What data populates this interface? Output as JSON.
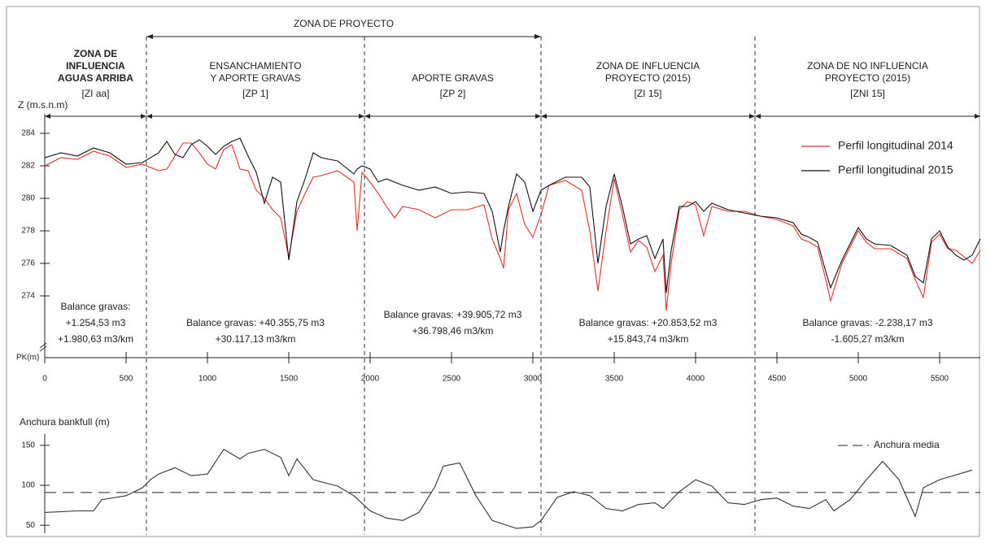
{
  "chart_data": [
    {
      "type": "line",
      "y_label": "Z (m.s.n.m)",
      "x_label": "PK(m)",
      "xlim": [
        0,
        5750
      ],
      "xticks": [
        0,
        500,
        1000,
        1500,
        2000,
        2500,
        3000,
        3500,
        4000,
        4500,
        5000,
        5500
      ],
      "ylim": [
        273,
        285
      ],
      "yticks": [
        274,
        276,
        278,
        280,
        282,
        284
      ],
      "x": [
        0,
        100,
        200,
        300,
        400,
        500,
        600,
        700,
        750,
        800,
        850,
        900,
        950,
        1000,
        1050,
        1100,
        1150,
        1200,
        1250,
        1300,
        1350,
        1400,
        1450,
        1500,
        1550,
        1600,
        1650,
        1700,
        1800,
        1900,
        1920,
        1950,
        2000,
        2050,
        2100,
        2150,
        2200,
        2300,
        2400,
        2500,
        2600,
        2700,
        2750,
        2800,
        2820,
        2850,
        2900,
        2950,
        3000,
        3050,
        3100,
        3200,
        3300,
        3350,
        3400,
        3450,
        3500,
        3550,
        3600,
        3650,
        3700,
        3750,
        3800,
        3820,
        3850,
        3900,
        3950,
        4000,
        4050,
        4100,
        4200,
        4300,
        4400,
        4500,
        4600,
        4650,
        4700,
        4750,
        4800,
        4830,
        4900,
        5000,
        5050,
        5100,
        5200,
        5300,
        5350,
        5400,
        5450,
        5500,
        5550,
        5600,
        5650,
        5700,
        5750
      ],
      "series": [
        {
          "name": "Perfil longitudinal 2014",
          "color": "#e8302a",
          "values": [
            282.0,
            282.5,
            282.4,
            282.9,
            282.6,
            281.9,
            282.1,
            281.7,
            281.8,
            282.6,
            283.4,
            283.4,
            282.8,
            282.1,
            281.8,
            283.0,
            283.3,
            281.8,
            281.7,
            280.5,
            280.0,
            279.3,
            278.8,
            276.4,
            279.2,
            280.3,
            281.3,
            281.4,
            281.7,
            281.0,
            278.0,
            281.6,
            281.0,
            280.3,
            279.5,
            278.8,
            279.5,
            279.3,
            278.8,
            279.3,
            279.3,
            279.6,
            277.5,
            276.3,
            275.7,
            279.3,
            280.3,
            278.4,
            277.6,
            279.0,
            280.8,
            281.1,
            280.5,
            278.0,
            274.3,
            278.0,
            281.2,
            279.0,
            276.7,
            277.4,
            277.0,
            275.5,
            276.5,
            273.1,
            276.0,
            279.3,
            279.8,
            279.6,
            277.7,
            279.5,
            279.2,
            279.2,
            278.9,
            278.7,
            278.3,
            277.5,
            277.3,
            277.0,
            275.0,
            273.7,
            276.0,
            278.0,
            277.3,
            276.9,
            276.9,
            276.3,
            275.0,
            273.9,
            277.3,
            277.8,
            276.9,
            276.8,
            276.4,
            276.0,
            276.8
          ]
        },
        {
          "name": "Perfil longitudinal 2015",
          "color": "#111111",
          "values": [
            282.5,
            282.8,
            282.6,
            283.1,
            282.8,
            282.1,
            282.2,
            282.8,
            283.5,
            282.7,
            282.5,
            283.3,
            283.6,
            283.2,
            282.7,
            283.2,
            283.5,
            283.7,
            282.6,
            281.6,
            279.7,
            281.3,
            281.0,
            276.2,
            279.8,
            281.2,
            282.8,
            282.5,
            282.3,
            281.5,
            281.8,
            282.0,
            281.8,
            281.0,
            281.2,
            281.0,
            280.8,
            280.5,
            280.7,
            280.3,
            280.4,
            280.3,
            279.2,
            276.7,
            278.0,
            279.5,
            281.5,
            281.0,
            279.2,
            280.5,
            280.8,
            281.3,
            281.3,
            280.7,
            276.0,
            279.5,
            281.5,
            279.5,
            277.2,
            277.5,
            277.7,
            276.3,
            277.5,
            274.2,
            276.8,
            279.5,
            279.5,
            279.8,
            279.2,
            279.7,
            279.3,
            279.1,
            278.9,
            278.8,
            278.5,
            277.8,
            277.6,
            277.3,
            275.5,
            274.5,
            276.2,
            278.2,
            277.5,
            277.2,
            277.1,
            276.5,
            275.2,
            274.8,
            277.5,
            278.0,
            277.0,
            276.5,
            276.2,
            276.5,
            277.5
          ]
        }
      ],
      "legend": "upper right",
      "project_zone_label": "ZONA DE PROYECTO",
      "dividers": [
        625,
        1965,
        3050,
        4365
      ],
      "zones": [
        {
          "lines": [
            "ZONA DE",
            "INFLUENCIA",
            "AGUAS ARRIBA"
          ],
          "code": "[ZI aa]",
          "balance": [
            "Balance gravas:",
            "+1.254,53 m3",
            "+1.980,63 m3/km"
          ]
        },
        {
          "lines": [
            "ENSANCHAMIENTO",
            "Y APORTE GRAVAS"
          ],
          "code": "[ZP 1]",
          "balance": [
            "Balance gravas: +40.355,75 m3",
            "+30.117,13 m3/km"
          ]
        },
        {
          "lines": [
            "APORTE GRAVAS"
          ],
          "code": "[ZP 2]",
          "balance": [
            "Balance gravas: +39.905,72 m3",
            "+36.798,46 m3/km"
          ]
        },
        {
          "lines": [
            "ZONA DE INFLUENCIA",
            "PROYECTO (2015)"
          ],
          "code": "[ZI 15]",
          "balance": [
            "Balance gravas: +20.853,52 m3",
            "+15.843,74 m3/km"
          ]
        },
        {
          "lines": [
            "ZONA DE NO INFLUENCIA",
            "PROYECTO (2015)"
          ],
          "code": "[ZNI 15]",
          "balance": [
            "Balance gravas: -2.238,17 m3",
            "-1.605,27 m3/km"
          ]
        }
      ]
    },
    {
      "type": "line",
      "y_label": "Anchura bankfull (m)",
      "xlim": [
        0,
        5750
      ],
      "ylim": [
        40,
        160
      ],
      "yticks": [
        50,
        100,
        150
      ],
      "x": [
        0,
        200,
        300,
        350,
        500,
        600,
        650,
        700,
        800,
        900,
        1000,
        1100,
        1200,
        1250,
        1350,
        1450,
        1500,
        1550,
        1650,
        1800,
        1900,
        2000,
        2100,
        2200,
        2300,
        2400,
        2450,
        2550,
        2650,
        2750,
        2900,
        3000,
        3050,
        3150,
        3250,
        3350,
        3450,
        3550,
        3650,
        3750,
        3800,
        3900,
        4000,
        4100,
        4200,
        4300,
        4400,
        4500,
        4600,
        4700,
        4800,
        4850,
        4950,
        5050,
        5150,
        5250,
        5350,
        5400,
        5500,
        5700
      ],
      "series": [
        {
          "name": "Anchura bankfull",
          "color": "#333333",
          "values": [
            66,
            68,
            68,
            82,
            87,
            97,
            107,
            114,
            122,
            112,
            114,
            145,
            133,
            140,
            145,
            135,
            112,
            133,
            107,
            99,
            87,
            68,
            59,
            56,
            66,
            99,
            124,
            128,
            87,
            56,
            46,
            48,
            56,
            85,
            92,
            87,
            71,
            68,
            76,
            78,
            71,
            92,
            107,
            99,
            78,
            76,
            82,
            84,
            74,
            71,
            82,
            68,
            82,
            107,
            130,
            107,
            61,
            97,
            107,
            119
          ]
        }
      ],
      "mean": {
        "name": "Anchura media",
        "value": 91
      }
    }
  ]
}
